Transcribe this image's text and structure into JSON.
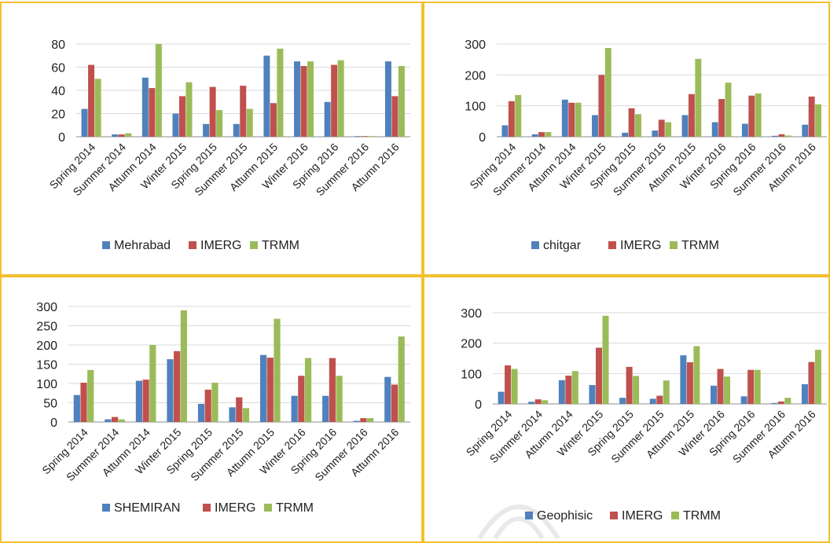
{
  "colors": {
    "blue": "#4f81bd",
    "red": "#c0504d",
    "green": "#9bbb59",
    "grid": "#d9d9d9",
    "axis": "#8c8c8c"
  },
  "chart_data": [
    {
      "type": "bar",
      "categories": [
        "Spring 2014",
        "Summer 2014",
        "Attumn 2014",
        "Winter 2015",
        "Spring 2015",
        "Summer 2015",
        "Attumn 2015",
        "Winter 2016",
        "Spring 2016",
        "Summer 2016",
        "Attumn 2016"
      ],
      "series": [
        {
          "name": "Mehrabad",
          "values": [
            24,
            2,
            51,
            20,
            11,
            11,
            70,
            65,
            30,
            0.5,
            65
          ]
        },
        {
          "name": "IMERG",
          "values": [
            62,
            2,
            42,
            35,
            43,
            44,
            29,
            61,
            62,
            0.5,
            35
          ]
        },
        {
          "name": "TRMM",
          "values": [
            50,
            3,
            80,
            47,
            23,
            24,
            76,
            65,
            66,
            0.5,
            61
          ]
        }
      ],
      "ylim": [
        0,
        80
      ],
      "yticks": [
        0,
        20,
        40,
        60,
        80
      ],
      "grid": true,
      "legend": "bottom"
    },
    {
      "type": "bar",
      "categories": [
        "Spring 2014",
        "Summer 2014",
        "Attumn 2014",
        "Winter 2015",
        "Spring 2015",
        "Summer 2015",
        "Attumn 2015",
        "Winter 2016",
        "Spring 2016",
        "Summer 2016",
        "Attumn 2016"
      ],
      "series": [
        {
          "name": "chitgar",
          "values": [
            37,
            8,
            120,
            70,
            13,
            20,
            70,
            47,
            42,
            3,
            39
          ]
        },
        {
          "name": "IMERG",
          "values": [
            115,
            15,
            110,
            200,
            92,
            55,
            138,
            122,
            133,
            8,
            130
          ]
        },
        {
          "name": "TRMM",
          "values": [
            135,
            15,
            110,
            287,
            73,
            47,
            252,
            175,
            140,
            4,
            105
          ]
        }
      ],
      "ylim": [
        0,
        300
      ],
      "yticks": [
        0,
        100,
        200,
        300
      ],
      "grid": true,
      "legend": "bottom"
    },
    {
      "type": "bar",
      "categories": [
        "Spring 2014",
        "Summer 2014",
        "Attumn 2014",
        "Winter 2015",
        "Spring 2015",
        "Summer 2015",
        "Attumn 2015",
        "Winter 2016",
        "Spring 2016",
        "Summer 2016",
        "Attumn 2016"
      ],
      "series": [
        {
          "name": "SHEMIRAN",
          "values": [
            70,
            7,
            107,
            163,
            47,
            38,
            174,
            68,
            68,
            3,
            117
          ]
        },
        {
          "name": "IMERG",
          "values": [
            102,
            13,
            110,
            184,
            84,
            64,
            167,
            120,
            166,
            10,
            97
          ]
        },
        {
          "name": "TRMM",
          "values": [
            135,
            7,
            200,
            290,
            102,
            36,
            268,
            166,
            120,
            10,
            222
          ]
        }
      ],
      "ylim": [
        0,
        300
      ],
      "yticks": [
        0,
        50,
        100,
        150,
        200,
        250,
        300
      ],
      "grid": true,
      "legend": "bottom"
    },
    {
      "type": "bar",
      "categories": [
        "Spring 2014",
        "Summer 2014",
        "Attumn 2014",
        "Winter 2015",
        "Spring 2015",
        "Summer 2015",
        "Attumn 2015",
        "Winter 2016",
        "Spring 2016",
        "Summer 2016",
        "Attumn 2016"
      ],
      "series": [
        {
          "name": "Geophisic",
          "values": [
            40,
            7,
            78,
            62,
            20,
            17,
            160,
            60,
            25,
            3,
            65
          ]
        },
        {
          "name": "IMERG",
          "values": [
            127,
            15,
            93,
            185,
            122,
            27,
            137,
            115,
            112,
            8,
            138
          ]
        },
        {
          "name": "TRMM",
          "values": [
            115,
            12,
            108,
            290,
            92,
            77,
            190,
            90,
            112,
            20,
            178
          ]
        }
      ],
      "ylim": [
        0,
        300
      ],
      "yticks": [
        0,
        100,
        200,
        300
      ],
      "grid": true,
      "legend": "bottom"
    }
  ]
}
